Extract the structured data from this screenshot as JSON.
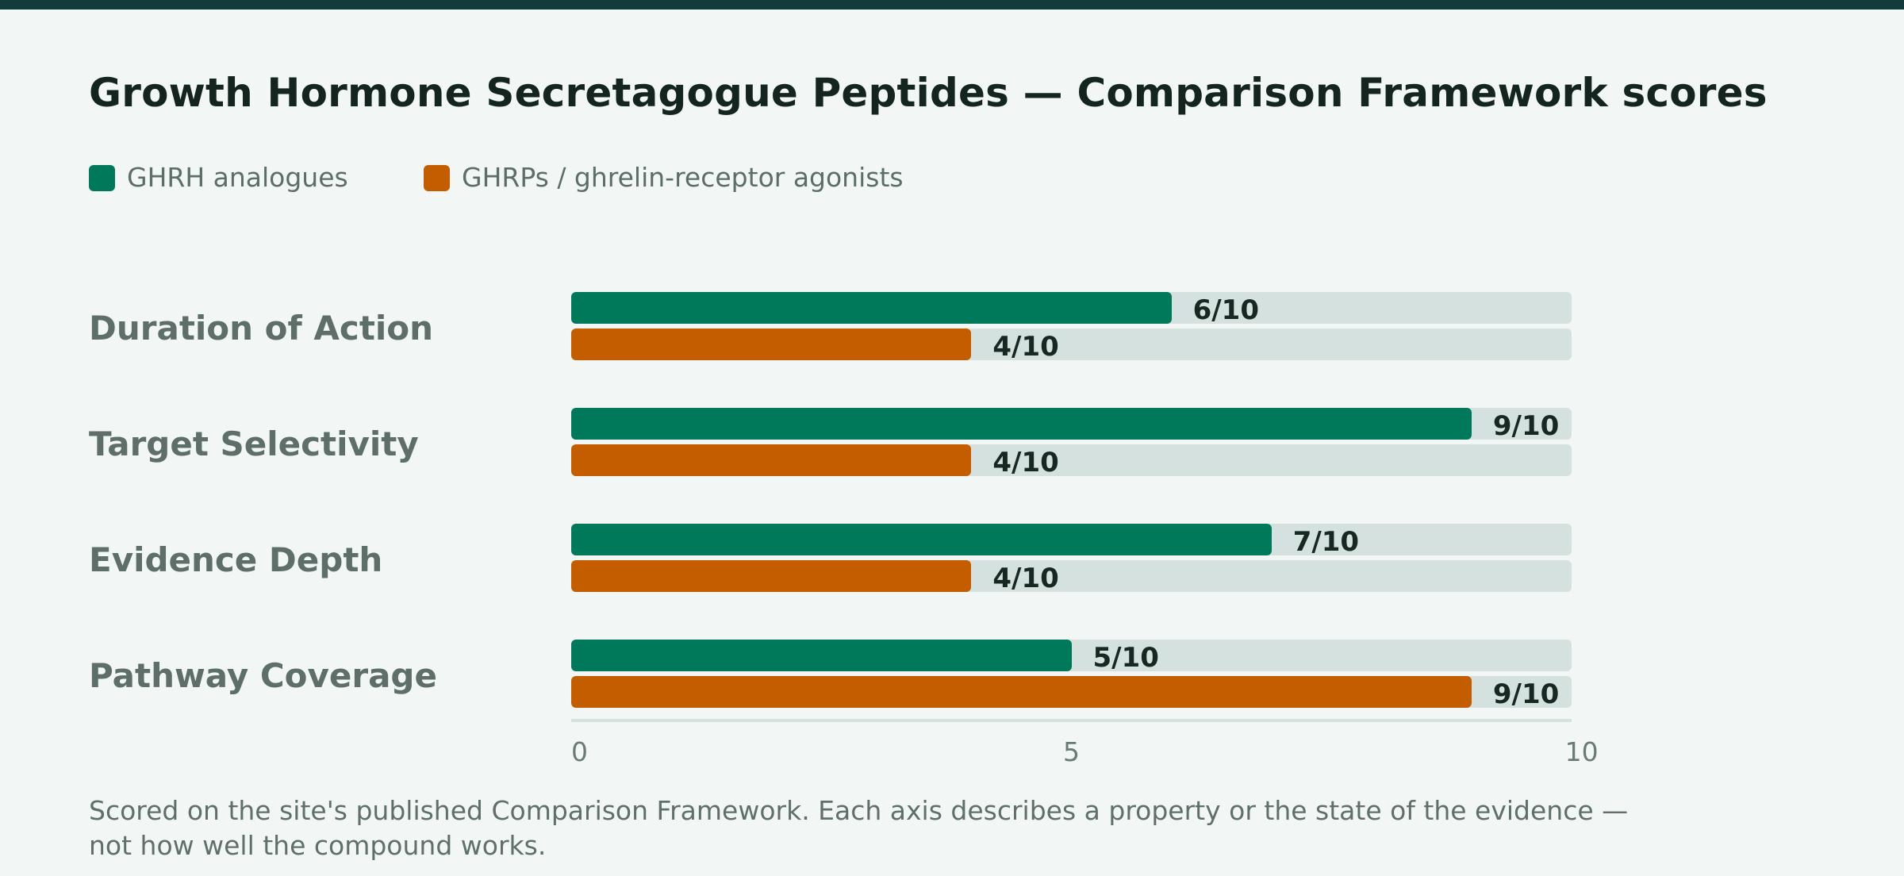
{
  "chart_data": {
    "type": "bar",
    "orientation": "horizontal",
    "title": "Growth Hormone Secretagogue Peptides — Comparison Framework scores",
    "categories": [
      "Duration of Action",
      "Target Selectivity",
      "Evidence Depth",
      "Pathway Coverage"
    ],
    "series": [
      {
        "name": "GHRH analogues",
        "color": "#00795a",
        "values": [
          6,
          9,
          7,
          5
        ],
        "labels": [
          "6/10",
          "9/10",
          "7/10",
          "5/10"
        ]
      },
      {
        "name": "GHRPs / ghrelin-receptor agonists",
        "color": "#c45c00",
        "values": [
          4,
          4,
          4,
          9
        ],
        "labels": [
          "4/10",
          "4/10",
          "4/10",
          "9/10"
        ]
      }
    ],
    "xlim": [
      0,
      10
    ],
    "xticks": [
      0,
      5,
      10
    ],
    "xtick_labels": [
      "0",
      "5",
      "10"
    ],
    "legend_position": "top-left",
    "grid": false
  },
  "footnote": "Scored on the site's published Comparison Framework. Each axis describes a property or the state of the evidence — not how well the compound works."
}
